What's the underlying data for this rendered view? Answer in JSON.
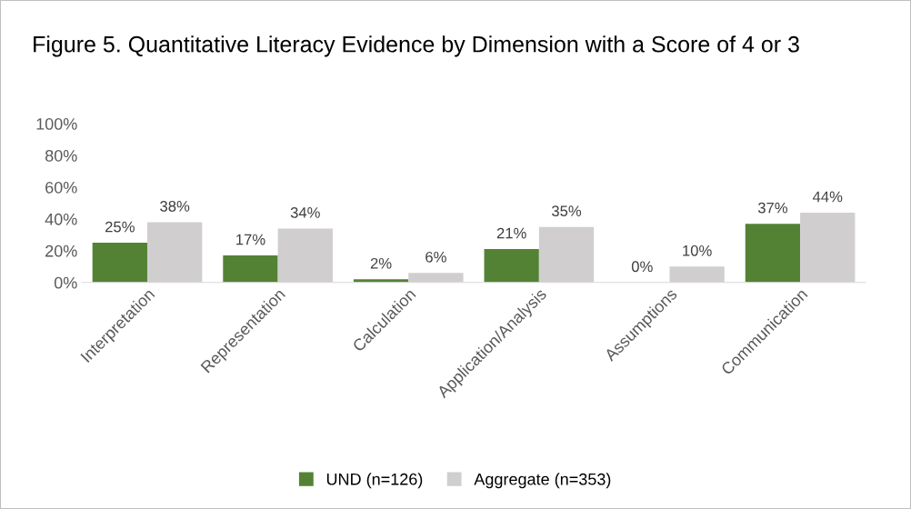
{
  "chart_data": {
    "type": "bar",
    "title": "Figure 5. Quantitative Literacy Evidence by Dimension with a Score of 4 or 3",
    "categories": [
      "Interpretation",
      "Representation",
      "Calculation",
      "Application/Analysis",
      "Assumptions",
      "Communication"
    ],
    "series": [
      {
        "name": "UND (n=126)",
        "color": "#548235",
        "values": [
          25,
          17,
          2,
          21,
          0,
          37
        ],
        "value_labels": [
          "25%",
          "17%",
          "2%",
          "21%",
          "0%",
          "37%"
        ]
      },
      {
        "name": "Aggregate (n=353)",
        "color": "#d0cece",
        "values": [
          38,
          34,
          6,
          35,
          10,
          44
        ],
        "value_labels": [
          "38%",
          "34%",
          "6%",
          "35%",
          "10%",
          "44%"
        ]
      }
    ],
    "ylim": [
      0,
      100
    ],
    "yticks": [
      {
        "value": 0,
        "label": "0%"
      },
      {
        "value": 20,
        "label": "20%"
      },
      {
        "value": 40,
        "label": "40%"
      },
      {
        "value": 60,
        "label": "60%"
      },
      {
        "value": 80,
        "label": "80%"
      },
      {
        "value": 100,
        "label": "100%"
      }
    ],
    "grid": false,
    "legend": "bottom"
  }
}
